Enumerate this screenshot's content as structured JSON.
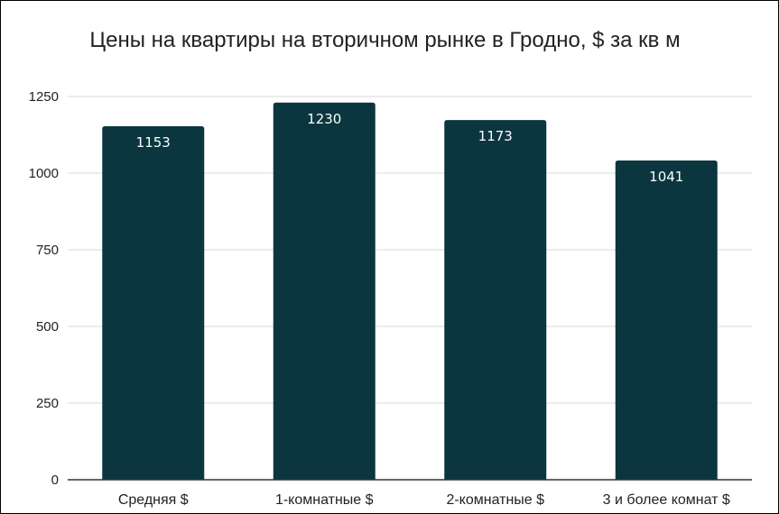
{
  "chart_data": {
    "type": "bar",
    "title": "Цены на квартиры на вторичном рынке в Гродно, $ за кв м",
    "xlabel": "",
    "ylabel": "",
    "categories": [
      "Средняя $",
      "1-комнатные $",
      "2-комнатные $",
      "3 и более комнат $"
    ],
    "values": [
      1153,
      1230,
      1173,
      1041
    ],
    "data_labels": [
      "1153",
      "1230",
      "1173",
      "1041"
    ],
    "ylim": [
      0,
      1250
    ],
    "yticks": [
      0,
      250,
      500,
      750,
      1000,
      1250
    ],
    "ytick_labels": [
      "0",
      "250",
      "500",
      "750",
      "1000",
      "1250"
    ],
    "grid": true,
    "legend": "none",
    "bar_color": "#0b3640",
    "grid_color": "#d9d9d9",
    "axis_color": "#333333"
  }
}
